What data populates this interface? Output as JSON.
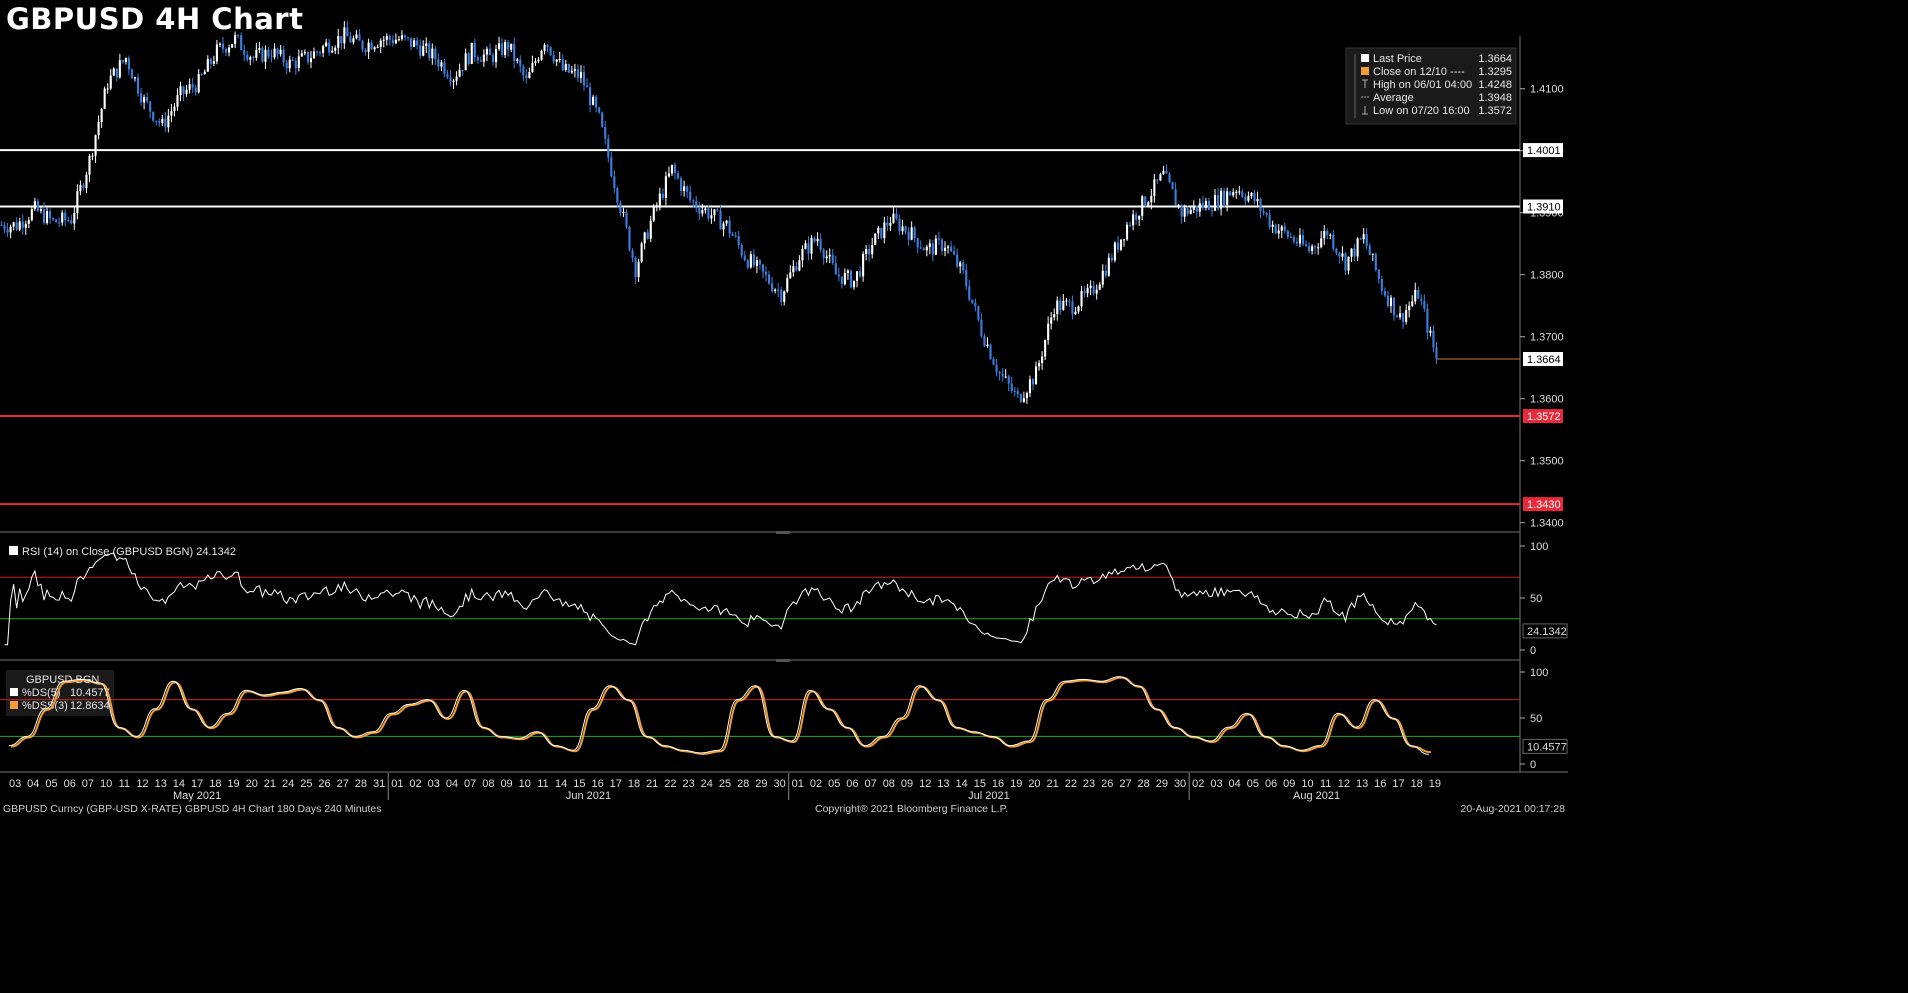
{
  "title": "GBPUSD 4H Chart",
  "legend": {
    "rows": [
      {
        "marker": "white-square",
        "label": "Last Price",
        "value": "1.3664"
      },
      {
        "marker": "orange-square",
        "label": "Close on 12/10 ----",
        "value": "1.3295"
      },
      {
        "marker": "high-glyph",
        "label": "High on 06/01 04:00",
        "value": "1.4248"
      },
      {
        "marker": "avg-glyph",
        "label": "Average",
        "value": "1.3948"
      },
      {
        "marker": "low-glyph",
        "label": "Low on 07/20 16:00",
        "value": "1.3572"
      }
    ]
  },
  "price_axis": {
    "ticks": [
      "1.4100",
      "1.4000",
      "1.3900",
      "1.3800",
      "1.3700",
      "1.3600",
      "1.3500",
      "1.3400"
    ],
    "tags": [
      {
        "label": "1.4001",
        "color": "#ffffff",
        "text_color": "#000000"
      },
      {
        "label": "1.3910",
        "color": "#ffffff",
        "text_color": "#000000"
      },
      {
        "label": "1.3664",
        "color": "#ffffff",
        "text_color": "#000000"
      },
      {
        "label": "1.3572",
        "color": "#e8293a",
        "text_color": "#ffffff"
      },
      {
        "label": "1.3430",
        "color": "#e8293a",
        "text_color": "#ffffff"
      }
    ]
  },
  "rsi_panel": {
    "legend": "RSI (14)  on Close (GBPUSD BGN) 24.1342",
    "ticks": [
      "100",
      "50",
      "0"
    ],
    "tag": "24.1342"
  },
  "stoch_panel": {
    "header": "GBPUSD BGN",
    "ds_label": "%DS(5)",
    "ds_value": "10.4577",
    "dss_label": "%DSS(3)",
    "dss_value": "12.8634",
    "ticks": [
      "100",
      "50",
      "0"
    ],
    "tag": "10.4577"
  },
  "x_axis": {
    "days": [
      "03",
      "04",
      "05",
      "06",
      "07",
      "10",
      "11",
      "12",
      "13",
      "14",
      "17",
      "18",
      "19",
      "20",
      "21",
      "24",
      "25",
      "26",
      "27",
      "28",
      "31",
      "01",
      "02",
      "03",
      "04",
      "07",
      "08",
      "09",
      "10",
      "11",
      "14",
      "15",
      "16",
      "17",
      "18",
      "21",
      "22",
      "23",
      "24",
      "25",
      "28",
      "29",
      "30",
      "01",
      "02",
      "05",
      "06",
      "07",
      "08",
      "09",
      "12",
      "13",
      "14",
      "15",
      "16",
      "19",
      "20",
      "21",
      "22",
      "23",
      "26",
      "27",
      "28",
      "29",
      "30",
      "02",
      "03",
      "04",
      "05",
      "06",
      "09",
      "10",
      "11",
      "12",
      "13",
      "16",
      "17",
      "18",
      "19"
    ],
    "months": [
      {
        "label": "May 2021",
        "after_index": 0
      },
      {
        "label": "Jun 2021",
        "after_index": 21
      },
      {
        "label": "Jul 2021",
        "after_index": 43
      },
      {
        "label": "Aug 2021",
        "after_index": 65
      }
    ]
  },
  "footer": {
    "left": "GBPUSD Curncy (GBP-USD X-RATE) GBPUSD 4H Chart 180 Days 240 Minutes",
    "center": "Copyright® 2021 Bloomberg Finance L.P.",
    "right": "20-Aug-2021 00:17:28"
  },
  "colors": {
    "up_candle": "#ffffff",
    "down_candle": "#3a7fe0",
    "resistance_line": "#ffffff",
    "support_line": "#e8293a",
    "overbought_line": "#cc1f1f",
    "oversold_line": "#22aa22",
    "ds_line": "#ffffff",
    "dss_line": "#f39c32"
  },
  "chart_data": {
    "type": "candlestick",
    "instrument": "GBPUSD",
    "interval": "4H",
    "ylim": [
      1.3385,
      1.4185
    ],
    "last_price": 1.3664,
    "horizontal_levels": [
      1.4001,
      1.391,
      1.3572,
      1.343
    ],
    "daily_closes": [
      1.388,
      1.3905,
      1.3885,
      1.389,
      1.3985,
      1.411,
      1.415,
      1.408,
      1.404,
      1.409,
      1.411,
      1.416,
      1.418,
      1.415,
      1.416,
      1.414,
      1.415,
      1.417,
      1.4185,
      1.417,
      1.418,
      1.418,
      1.417,
      1.415,
      1.412,
      1.416,
      1.415,
      1.417,
      1.411,
      1.418,
      1.413,
      1.412,
      1.405,
      1.393,
      1.381,
      1.39,
      1.397,
      1.392,
      1.39,
      1.388,
      1.383,
      1.38,
      1.377,
      1.383,
      1.386,
      1.38,
      1.379,
      1.385,
      1.389,
      1.387,
      1.384,
      1.385,
      1.38,
      1.371,
      1.364,
      1.36,
      1.364,
      1.375,
      1.375,
      1.377,
      1.382,
      1.388,
      1.392,
      1.396,
      1.39,
      1.391,
      1.392,
      1.394,
      1.392,
      1.388,
      1.386,
      1.384,
      1.387,
      1.382,
      1.386,
      1.378,
      1.373,
      1.377,
      1.3664
    ],
    "rsi": {
      "ob": 70,
      "os": 30,
      "last": 24.1342
    },
    "stochastic": {
      "ob": 70,
      "os": 30,
      "ds_last": 10.4577,
      "dss_last": 12.8634,
      "ds_daily": [
        20,
        30,
        60,
        90,
        92,
        88,
        40,
        30,
        60,
        90,
        60,
        40,
        55,
        80,
        75,
        78,
        82,
        70,
        40,
        30,
        35,
        55,
        65,
        70,
        50,
        80,
        40,
        30,
        28,
        35,
        20,
        15,
        60,
        85,
        70,
        30,
        20,
        15,
        12,
        15,
        70,
        85,
        30,
        25,
        80,
        60,
        40,
        20,
        30,
        50,
        85,
        70,
        40,
        35,
        30,
        20,
        25,
        70,
        90,
        92,
        90,
        95,
        85,
        60,
        40,
        30,
        25,
        40,
        55,
        30,
        20,
        15,
        20,
        55,
        40,
        70,
        50,
        20,
        12
      ]
    }
  }
}
